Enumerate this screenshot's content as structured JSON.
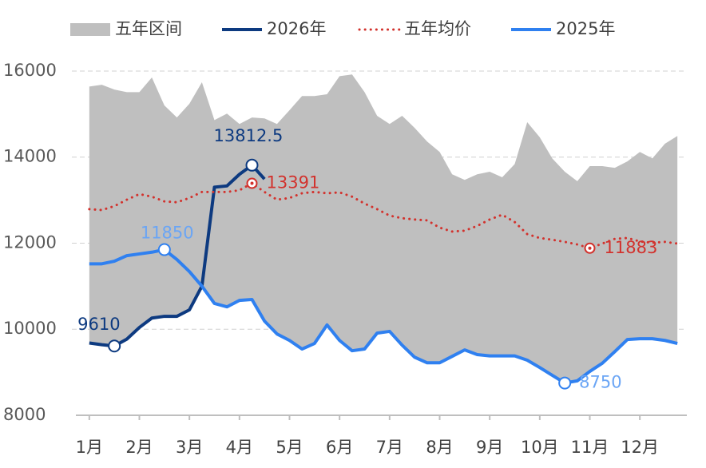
{
  "chart_data": {
    "type": "line",
    "categories": [
      "1月",
      null,
      null,
      null,
      "2月",
      null,
      null,
      null,
      "3月",
      null,
      null,
      null,
      "4月",
      null,
      null,
      null,
      "5月",
      null,
      null,
      null,
      "6月",
      null,
      null,
      null,
      "7月",
      null,
      null,
      null,
      "8月",
      null,
      null,
      null,
      "9月",
      null,
      null,
      null,
      "10月",
      null,
      null,
      null,
      "11月",
      null,
      null,
      null,
      "12月",
      null,
      null,
      null
    ],
    "ylim": [
      8000,
      16500
    ],
    "yticks": [
      8000,
      10000,
      12000,
      14000,
      16000
    ],
    "grid": true,
    "legend": "top",
    "series": [
      {
        "name": "五年区间",
        "color": "#bfbfbf",
        "type": "range",
        "high": [
          15640,
          15680,
          15570,
          15510,
          15510,
          15850,
          15200,
          14920,
          15240,
          15740,
          14860,
          15010,
          14770,
          14920,
          14900,
          14770,
          15090,
          15420,
          15420,
          15460,
          15880,
          15920,
          15510,
          14960,
          14770,
          14960,
          14680,
          14360,
          14120,
          13600,
          13470,
          13600,
          13660,
          13530,
          13840,
          14810,
          14460,
          13970,
          13660,
          13440,
          13790,
          13790,
          13750,
          13900,
          14120,
          13970,
          14310,
          14490
        ],
        "low": [
          9680,
          9640,
          9610,
          9770,
          10040,
          10260,
          10300,
          10300,
          10450,
          10970,
          10600,
          10520,
          10670,
          10690,
          10190,
          9890,
          9740,
          9540,
          9670,
          10100,
          9740,
          9500,
          9540,
          9910,
          9950,
          9630,
          9350,
          9220,
          9220,
          9370,
          9520,
          9410,
          9380,
          9380,
          9380,
          9280,
          9110,
          8930,
          8750,
          8800,
          9020,
          9210,
          9480,
          9760,
          9780,
          9780,
          9740,
          9670
        ]
      },
      {
        "name": "2026年",
        "color": "#0d3a80",
        "width": 4,
        "markers": [
          2,
          13
        ],
        "values": [
          9680,
          9640,
          9610,
          9770,
          10040,
          10260,
          10300,
          10300,
          10450,
          11000,
          13300,
          13330,
          13600,
          13812.5,
          13490,
          null,
          null,
          null,
          null,
          null,
          null,
          null,
          null,
          null,
          null,
          null,
          null,
          null,
          null,
          null,
          null,
          null,
          null,
          null,
          null,
          null,
          null,
          null,
          null,
          null,
          null,
          null,
          null,
          null,
          null,
          null,
          null,
          null
        ]
      },
      {
        "name": "五年均价",
        "color": "#d2322d",
        "width": 3,
        "dotted": true,
        "markers": [
          13,
          40
        ],
        "values": [
          12790,
          12770,
          12860,
          13010,
          13140,
          13080,
          12970,
          12950,
          13050,
          13190,
          13190,
          13190,
          13230,
          13391,
          13190,
          13010,
          13050,
          13160,
          13190,
          13160,
          13180,
          13080,
          12920,
          12790,
          12640,
          12580,
          12550,
          12530,
          12360,
          12270,
          12290,
          12400,
          12550,
          12660,
          12490,
          12210,
          12120,
          12080,
          12030,
          11970,
          11883,
          11990,
          12100,
          12120,
          12040,
          12010,
          12030,
          11990
        ]
      },
      {
        "name": "2025年",
        "color": "#2f80f0",
        "width": 4,
        "markers": [
          6,
          38
        ],
        "values": [
          11520,
          11520,
          11580,
          11710,
          11750,
          11790,
          11850,
          11620,
          11340,
          11000,
          10600,
          10520,
          10670,
          10690,
          10190,
          9890,
          9740,
          9540,
          9670,
          10100,
          9740,
          9500,
          9540,
          9910,
          9950,
          9630,
          9350,
          9220,
          9220,
          9370,
          9520,
          9410,
          9380,
          9380,
          9380,
          9280,
          9110,
          8930,
          8750,
          8800,
          9020,
          9210,
          9480,
          9760,
          9780,
          9780,
          9740,
          9670
        ]
      }
    ]
  }
}
